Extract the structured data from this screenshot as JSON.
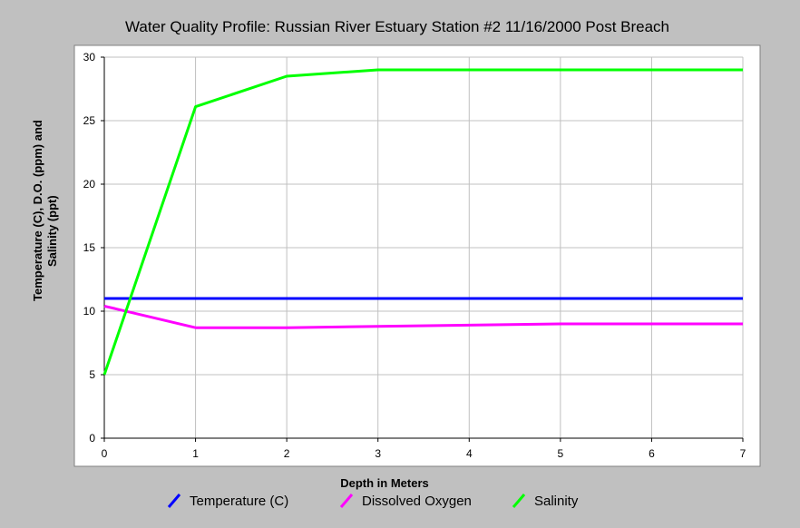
{
  "chart_data": {
    "type": "line",
    "title": "Water Quality Profile: Russian River Estuary Station #2 11/16/2000 Post Breach",
    "xlabel": "Depth in Meters",
    "ylabel_line1": "Temperature (C), D.O. (ppm) and",
    "ylabel_line2": "Salinity (ppt)",
    "xlim": [
      0,
      7
    ],
    "ylim": [
      0,
      30
    ],
    "x_ticks": [
      "0",
      "1",
      "2",
      "3",
      "4",
      "5",
      "6",
      "7"
    ],
    "y_ticks": [
      "0",
      "5",
      "10",
      "15",
      "20",
      "25",
      "30"
    ],
    "grid": true,
    "legend_position": "bottom",
    "x": [
      0,
      1,
      2,
      3,
      4,
      5,
      6,
      7
    ],
    "series": [
      {
        "name": "Temperature (C)",
        "color": "#0000ff",
        "values": [
          11.0,
          11.0,
          11.0,
          11.0,
          11.0,
          11.0,
          11.0,
          11.0
        ]
      },
      {
        "name": "Dissolved Oxygen",
        "color": "#ff00ff",
        "values": [
          10.4,
          8.7,
          8.7,
          8.8,
          8.9,
          9.0,
          9.0,
          9.0
        ]
      },
      {
        "name": "Salinity",
        "color": "#00ff00",
        "values": [
          5.0,
          26.1,
          28.5,
          29.0,
          29.0,
          29.0,
          29.0,
          29.0
        ]
      }
    ]
  }
}
